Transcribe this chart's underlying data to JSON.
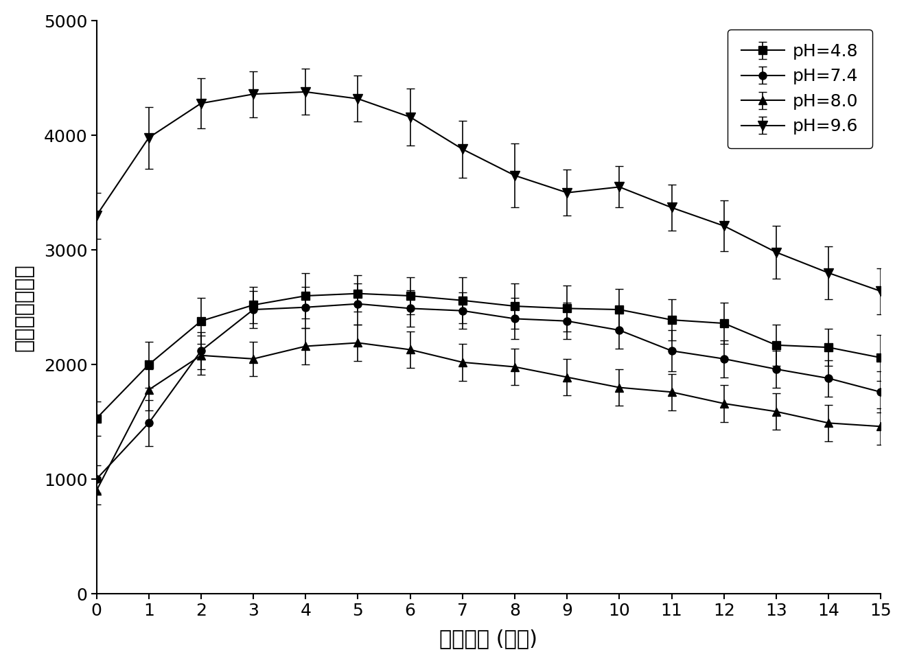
{
  "x": [
    0,
    1,
    2,
    3,
    4,
    5,
    6,
    7,
    8,
    9,
    10,
    11,
    12,
    13,
    14,
    15
  ],
  "ph48_y": [
    1530,
    2000,
    2380,
    2520,
    2600,
    2620,
    2600,
    2560,
    2510,
    2490,
    2480,
    2390,
    2360,
    2170,
    2150,
    2060
  ],
  "ph74_y": [
    1000,
    1490,
    2120,
    2480,
    2500,
    2530,
    2490,
    2470,
    2400,
    2380,
    2300,
    2120,
    2050,
    1960,
    1880,
    1760
  ],
  "ph80_y": [
    900,
    1780,
    2080,
    2050,
    2160,
    2190,
    2130,
    2020,
    1980,
    1890,
    1800,
    1760,
    1660,
    1590,
    1490,
    1460
  ],
  "ph96_y": [
    3300,
    3980,
    4280,
    4360,
    4380,
    4320,
    4160,
    3880,
    3650,
    3500,
    3550,
    3370,
    3210,
    2980,
    2800,
    2640
  ],
  "ph48_err": [
    150,
    200,
    200,
    160,
    200,
    160,
    160,
    200,
    200,
    200,
    180,
    180,
    180,
    180,
    160,
    200
  ],
  "ph74_err": [
    120,
    200,
    160,
    160,
    180,
    180,
    160,
    160,
    180,
    160,
    160,
    180,
    160,
    160,
    160,
    180
  ],
  "ph80_err": [
    120,
    180,
    170,
    150,
    160,
    160,
    160,
    160,
    160,
    160,
    160,
    160,
    160,
    160,
    160,
    160
  ],
  "ph96_err": [
    200,
    270,
    220,
    200,
    200,
    200,
    250,
    250,
    280,
    200,
    180,
    200,
    220,
    230,
    230,
    200
  ],
  "xlabel": "反应时间 (分钟)",
  "ylabel": "化学发光信号値",
  "legend": [
    "pH=4.8",
    "pH=7.4",
    "pH=8.0",
    "pH=9.6"
  ],
  "xlim": [
    0,
    15
  ],
  "ylim": [
    0,
    5000
  ],
  "yticks": [
    0,
    1000,
    2000,
    3000,
    4000,
    5000
  ],
  "xticks": [
    0,
    1,
    2,
    3,
    4,
    5,
    6,
    7,
    8,
    9,
    10,
    11,
    12,
    13,
    14,
    15
  ],
  "line_color": "#000000",
  "background_color": "#ffffff"
}
